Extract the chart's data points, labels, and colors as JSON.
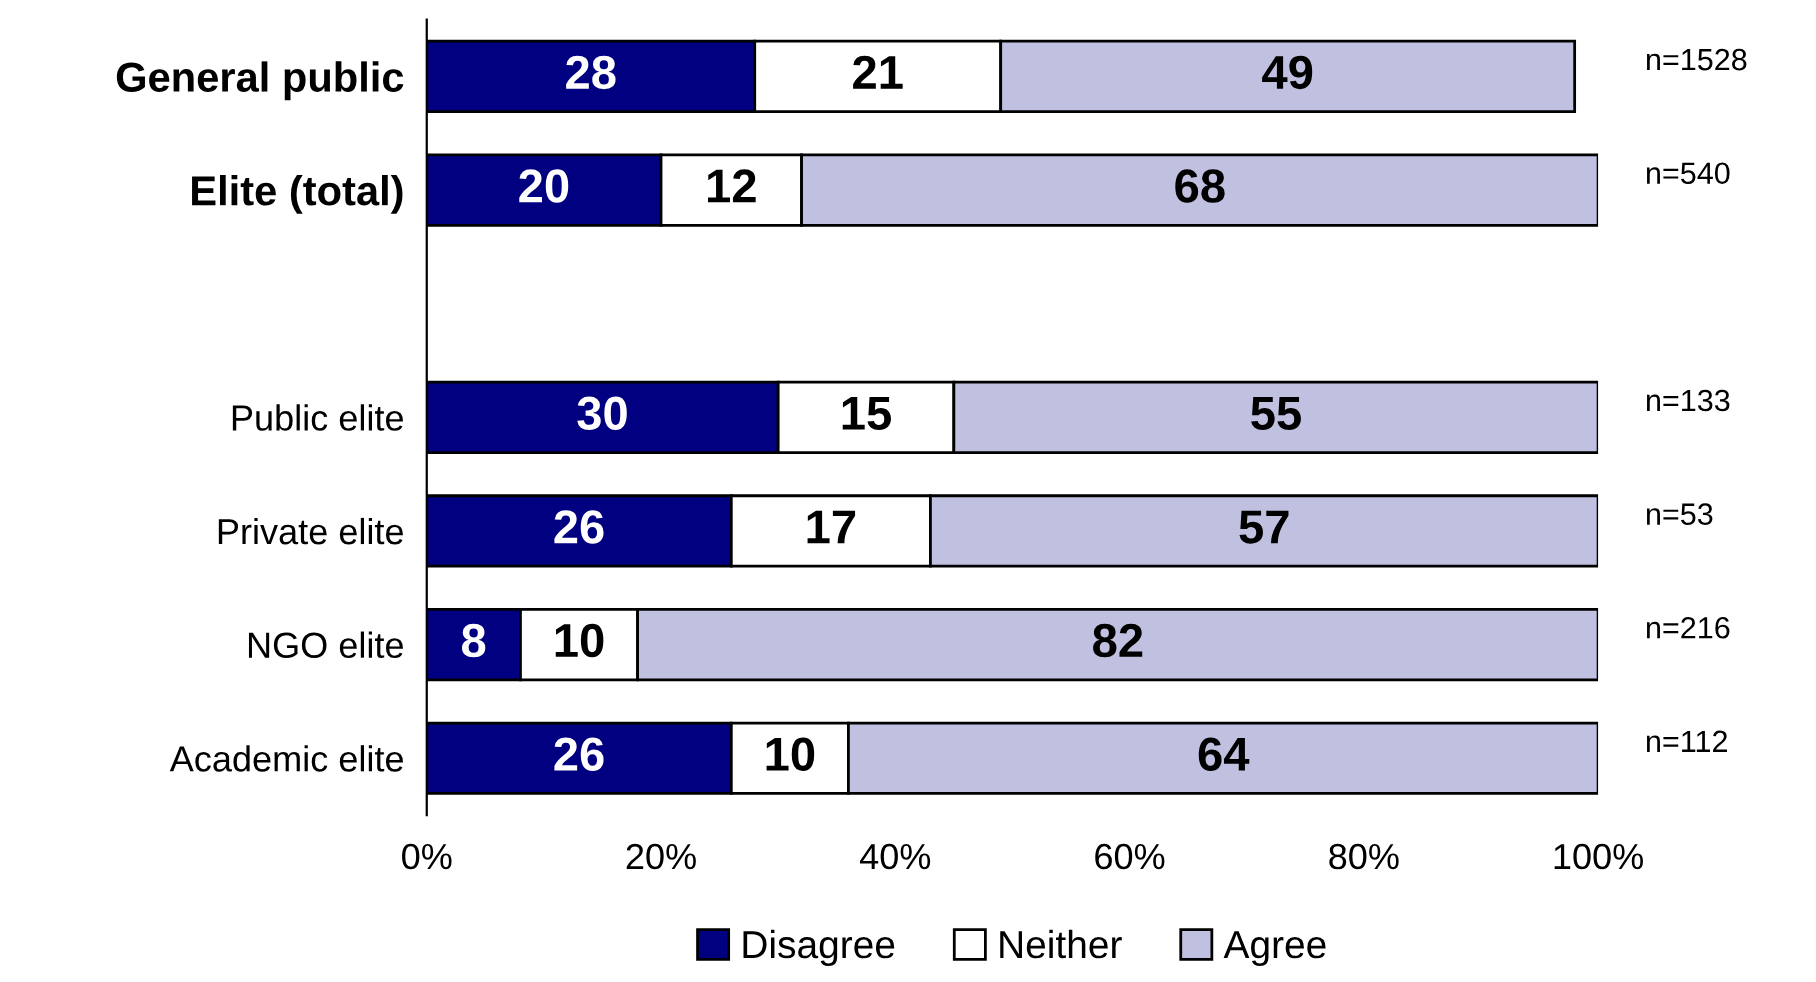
{
  "chart_data": {
    "type": "bar",
    "orientation": "horizontal",
    "stacked": true,
    "categories": [
      "General public",
      "Elite (total)",
      null,
      "Public elite",
      "Private elite",
      "NGO elite",
      "Academic elite"
    ],
    "series": [
      {
        "name": "Disagree",
        "color": "#000080",
        "values": [
          28,
          20,
          null,
          30,
          26,
          8,
          26
        ]
      },
      {
        "name": "Neither",
        "color": "#ffffff",
        "values": [
          21,
          12,
          null,
          15,
          17,
          10,
          10
        ]
      },
      {
        "name": "Agree",
        "color": "#c0c0e0",
        "values": [
          49,
          68,
          null,
          55,
          57,
          82,
          64
        ]
      }
    ],
    "data_labels": true,
    "xlim": [
      0,
      100
    ],
    "xticks": [
      {
        "value": 0,
        "label": "0%"
      },
      {
        "value": 20,
        "label": "20%"
      },
      {
        "value": 40,
        "label": "40%"
      },
      {
        "value": 60,
        "label": "60%"
      },
      {
        "value": 80,
        "label": "80%"
      },
      {
        "value": 100,
        "label": "100%"
      }
    ],
    "grid": false,
    "legend": "bottom",
    "annotations": [
      "n=1528",
      "n=540",
      "n=133",
      "n=53",
      "n=216",
      "n=112"
    ]
  }
}
